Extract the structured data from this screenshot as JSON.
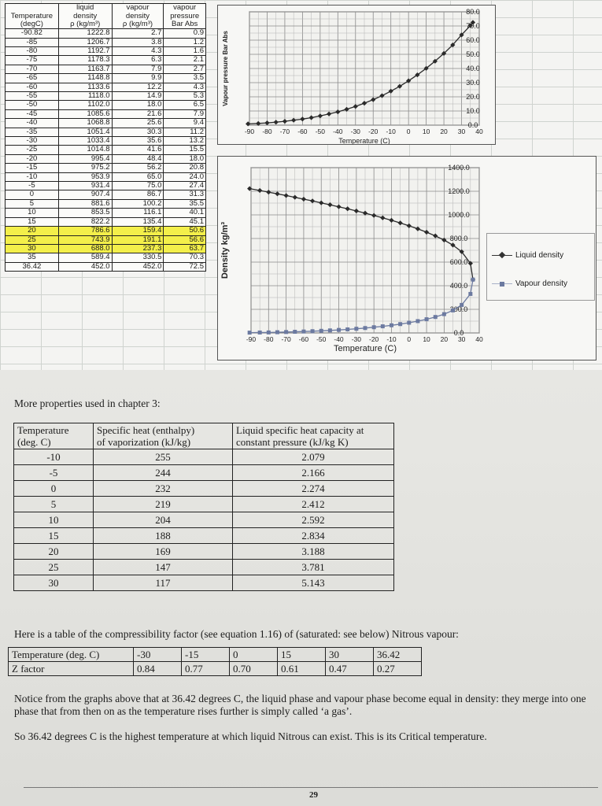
{
  "sheet": {
    "headers": {
      "row1": [
        "",
        "liquid",
        "vapour",
        "vapour"
      ],
      "row2": [
        "Temperature",
        "density",
        "density",
        "pressure"
      ],
      "row3": [
        "(degC)",
        "ρ (kg/m³)",
        "ρ (kg/m³)",
        "Bar Abs"
      ]
    },
    "rows": [
      [
        "-90.82",
        "1222.8",
        "2.7",
        "0.9"
      ],
      [
        "-85",
        "1206.7",
        "3.8",
        "1.2"
      ],
      [
        "-80",
        "1192.7",
        "4.3",
        "1.6"
      ],
      [
        "-75",
        "1178.3",
        "6.3",
        "2.1"
      ],
      [
        "-70",
        "1163.7",
        "7.9",
        "2.7"
      ],
      [
        "-65",
        "1148.8",
        "9.9",
        "3.5"
      ],
      [
        "-60",
        "1133.6",
        "12.2",
        "4.3"
      ],
      [
        "-55",
        "1118.0",
        "14.9",
        "5.3"
      ],
      [
        "-50",
        "1102.0",
        "18.0",
        "6.5"
      ],
      [
        "-45",
        "1085.6",
        "21.6",
        "7.9"
      ],
      [
        "-40",
        "1068.8",
        "25.6",
        "9.4"
      ],
      [
        "-35",
        "1051.4",
        "30.3",
        "11.2"
      ],
      [
        "-30",
        "1033.4",
        "35.6",
        "13.2"
      ],
      [
        "-25",
        "1014.8",
        "41.6",
        "15.5"
      ],
      [
        "-20",
        "995.4",
        "48.4",
        "18.0"
      ],
      [
        "-15",
        "975.2",
        "56.2",
        "20.8"
      ],
      [
        "-10",
        "953.9",
        "65.0",
        "24.0"
      ],
      [
        "-5",
        "931.4",
        "75.0",
        "27.4"
      ],
      [
        "0",
        "907.4",
        "86.7",
        "31.3"
      ],
      [
        "5",
        "881.6",
        "100.2",
        "35.5"
      ],
      [
        "10",
        "853.5",
        "116.1",
        "40.1"
      ],
      [
        "15",
        "822.2",
        "135.4",
        "45.1"
      ],
      [
        "20",
        "786.6",
        "159.4",
        "50.6"
      ],
      [
        "25",
        "743.9",
        "191.1",
        "56.6"
      ],
      [
        "30",
        "688.0",
        "237.3",
        "63.7"
      ],
      [
        "35",
        "589.4",
        "330.5",
        "70.3"
      ],
      [
        "36.42",
        "452.0",
        "452.0",
        "72.5"
      ]
    ]
  },
  "chart_data": [
    {
      "type": "line",
      "title": "",
      "xlabel": "Temperature (C)",
      "ylabel": "Vapour pressure Bar Abs",
      "xlim": [
        -90,
        40
      ],
      "ylim": [
        0,
        80
      ],
      "x_ticks": [
        "-90",
        "-80",
        "-70",
        "-60",
        "-50",
        "-40",
        "-30",
        "-20",
        "-10",
        "0",
        "10",
        "20",
        "30",
        "40"
      ],
      "y_ticks": [
        "0.0",
        "10.0",
        "20.0",
        "30.0",
        "40.0",
        "50.0",
        "60.0",
        "70.0",
        "80.0"
      ],
      "grid": true,
      "x": [
        -90.82,
        -85,
        -80,
        -75,
        -70,
        -65,
        -60,
        -55,
        -50,
        -45,
        -40,
        -35,
        -30,
        -25,
        -20,
        -15,
        -10,
        -5,
        0,
        5,
        10,
        15,
        20,
        25,
        30,
        35,
        36.42
      ],
      "series": [
        {
          "values": [
            0.9,
            1.2,
            1.6,
            2.1,
            2.7,
            3.5,
            4.3,
            5.3,
            6.5,
            7.9,
            9.4,
            11.2,
            13.2,
            15.5,
            18.0,
            20.8,
            24.0,
            27.4,
            31.3,
            35.5,
            40.1,
            45.1,
            50.6,
            56.6,
            63.7,
            70.3,
            72.5
          ],
          "color": "#2a2a2a"
        }
      ]
    },
    {
      "type": "line",
      "title": "",
      "xlabel": "Temperature (C)",
      "ylabel": "Density kg/m³",
      "xlim": [
        -90,
        40
      ],
      "ylim": [
        0,
        1400
      ],
      "x_ticks": [
        "-90",
        "-80",
        "-70",
        "-60",
        "-50",
        "-40",
        "-30",
        "-20",
        "-10",
        "0",
        "10",
        "20",
        "30",
        "40"
      ],
      "y_ticks": [
        "0.0",
        "200.0",
        "400.0",
        "600.0",
        "800.0",
        "1000.0",
        "1200.0",
        "1400.0"
      ],
      "grid": true,
      "legend": "right",
      "x": [
        -90.82,
        -85,
        -80,
        -75,
        -70,
        -65,
        -60,
        -55,
        -50,
        -45,
        -40,
        -35,
        -30,
        -25,
        -20,
        -15,
        -10,
        -5,
        0,
        5,
        10,
        15,
        20,
        25,
        30,
        35,
        36.42
      ],
      "series": [
        {
          "name": "Liquid density",
          "color": "#2a2a2a",
          "values": [
            1222.8,
            1206.7,
            1192.7,
            1178.3,
            1163.7,
            1148.8,
            1133.6,
            1118.0,
            1102.0,
            1085.6,
            1068.8,
            1051.4,
            1033.4,
            1014.8,
            995.4,
            975.2,
            953.9,
            931.4,
            907.4,
            881.6,
            853.5,
            822.2,
            786.6,
            743.9,
            688.0,
            589.4,
            452.0
          ]
        },
        {
          "name": "Vapour density",
          "color": "#6c7aa0",
          "values": [
            2.7,
            3.8,
            4.3,
            6.3,
            7.9,
            9.9,
            12.2,
            14.9,
            18.0,
            21.6,
            25.6,
            30.3,
            35.6,
            41.6,
            48.4,
            56.2,
            65.0,
            75.0,
            86.7,
            100.2,
            116.1,
            135.4,
            159.4,
            191.1,
            237.3,
            330.5,
            452.0
          ]
        }
      ]
    }
  ],
  "book": {
    "heading": "More properties used in chapter 3:",
    "props_table": {
      "headers": [
        [
          "Temperature",
          "(deg. C)"
        ],
        [
          "Specific heat (enthalpy)",
          "of vaporization (kJ/kg)"
        ],
        [
          "Liquid specific heat capacity at",
          "constant pressure (kJ/kg K)"
        ]
      ],
      "rows": [
        [
          "-10",
          "255",
          "2.079"
        ],
        [
          "-5",
          "244",
          "2.166"
        ],
        [
          "0",
          "232",
          "2.274"
        ],
        [
          "5",
          "219",
          "2.412"
        ],
        [
          "10",
          "204",
          "2.592"
        ],
        [
          "15",
          "188",
          "2.834"
        ],
        [
          "20",
          "169",
          "3.188"
        ],
        [
          "25",
          "147",
          "3.781"
        ],
        [
          "30",
          "117",
          "5.143"
        ]
      ]
    },
    "z_intro": "Here is a table of the compressibility factor (see equation 1.16) of (saturated: see below) Nitrous vapour:",
    "z_table": {
      "row1_label": "Temperature (deg. C)",
      "row1": [
        "-30",
        "-15",
        "0",
        "15",
        "30",
        "36.42"
      ],
      "row2_label": "Z factor",
      "row2": [
        "0.84",
        "0.77",
        "0.70",
        "0.61",
        "0.47",
        "0.27"
      ]
    },
    "note1": "Notice from the graphs above that at 36.42 degrees C, the liquid phase and vapour phase become equal in density: they merge into one phase that from then on as the temperature rises further is simply called ‘a gas’.",
    "note2": "So 36.42 degrees C is the highest temperature at which liquid Nitrous can exist. This is its Critical temperature.",
    "page_number": "29"
  }
}
